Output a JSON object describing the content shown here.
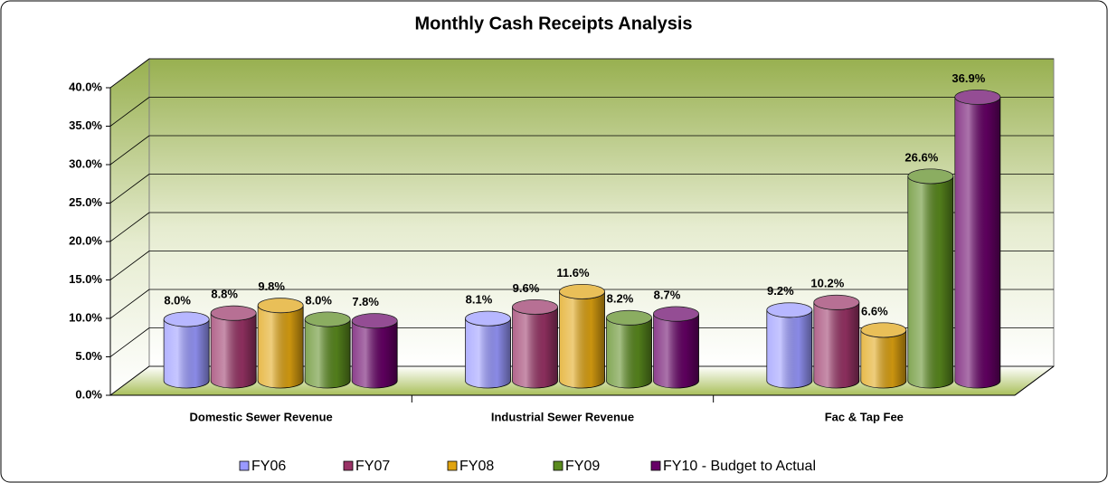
{
  "chart_data": {
    "type": "bar3d",
    "title": "Monthly Cash Receipts Analysis",
    "categories": [
      "Domestic Sewer Revenue",
      "Industrial Sewer Revenue",
      "Fac & Tap Fee"
    ],
    "series": [
      {
        "name": "FY06",
        "color": "#9999ff",
        "values": [
          8.0,
          8.1,
          9.2
        ],
        "value_labels": [
          "8.0%",
          "8.1%",
          "9.2%"
        ]
      },
      {
        "name": "FY07",
        "color": "#993366",
        "values": [
          8.8,
          9.6,
          10.2
        ],
        "value_labels": [
          "8.8%",
          "9.6%",
          "10.2%"
        ]
      },
      {
        "name": "FY08",
        "color": "#e0a411",
        "values": [
          9.8,
          11.6,
          6.6
        ],
        "value_labels": [
          "9.8%",
          "11.6%",
          "6.6%"
        ]
      },
      {
        "name": "FY09",
        "color": "#5a8a1e",
        "values": [
          8.0,
          8.2,
          26.6
        ],
        "value_labels": [
          "8.0%",
          "8.2%",
          "26.6%"
        ]
      },
      {
        "name": "FY10 - Budget to Actual",
        "color": "#660066",
        "values": [
          7.8,
          8.7,
          36.9
        ],
        "value_labels": [
          "7.8%",
          "8.7%",
          "36.9%"
        ]
      }
    ],
    "ylim": [
      0,
      40
    ],
    "yticks": [
      {
        "value": 0,
        "label": "0.0%"
      },
      {
        "value": 5,
        "label": "5.0%"
      },
      {
        "value": 10,
        "label": "10.0%"
      },
      {
        "value": 15,
        "label": "15.0%"
      },
      {
        "value": 20,
        "label": "20.0%"
      },
      {
        "value": 25,
        "label": "25.0%"
      },
      {
        "value": 30,
        "label": "30.0%"
      },
      {
        "value": 35,
        "label": "35.0%"
      },
      {
        "value": 40,
        "label": "40.0%"
      }
    ],
    "grid": true,
    "legend": "bottom"
  }
}
